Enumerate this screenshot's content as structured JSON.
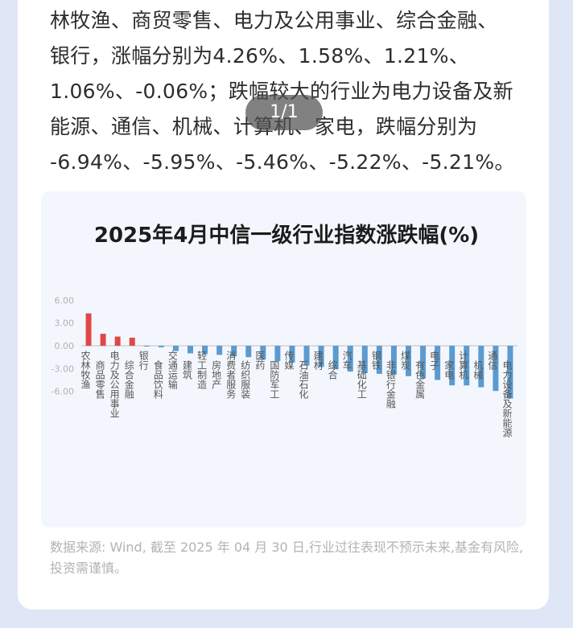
{
  "article": {
    "lines": [
      "林牧渔、商贸零售、电力及公用事业、综合金融、",
      "银行，涨幅分别为4.26%、1.58%、1.21%、",
      "1.06%、-0.06%；跌幅较大的行业为电力设备及新",
      "能源、通信、机械、计算机、家电，跌幅分别为",
      "-6.94%、-5.95%、-5.46%、-5.22%、-5.21%。"
    ]
  },
  "pager": {
    "label": "1/1"
  },
  "colors": {
    "positive": "#e04848",
    "negative": "#5b9bd0",
    "axis": "#999999"
  },
  "chart_data": {
    "type": "bar",
    "title": "2025年4月中信一级行业指数涨跌幅(%)",
    "ylim": [
      -7.5,
      6.5
    ],
    "yticks": [
      "6.00",
      "3.00",
      "0.00",
      "-3.00",
      "-6.00"
    ],
    "ytick_values": [
      6,
      3,
      0,
      -3,
      -6
    ],
    "categories": [
      "农林牧渔",
      "商品零售",
      "电力及公用事业",
      "综合金融",
      "银行",
      "食品饮料",
      "交通运输",
      "建筑",
      "轻工制造",
      "房地产",
      "消费者服务",
      "纺织服装",
      "医药",
      "国防军工",
      "传媒",
      "石油石化",
      "建材",
      "综合",
      "汽车",
      "基础化工",
      "钢铁",
      "非银行金融",
      "煤炭",
      "有色金属",
      "电子",
      "家电",
      "计算机",
      "机械",
      "通信",
      "电力设备及新能源"
    ],
    "values": [
      4.26,
      1.58,
      1.21,
      1.06,
      -0.06,
      -0.2,
      -0.7,
      -1.0,
      -1.1,
      -1.2,
      -1.4,
      -1.5,
      -1.8,
      -2.0,
      -2.2,
      -2.6,
      -2.8,
      -3.1,
      -3.4,
      -3.6,
      -3.7,
      -3.8,
      -4.0,
      -4.3,
      -4.5,
      -5.21,
      -5.22,
      -5.46,
      -5.95,
      -6.94
    ]
  },
  "source": {
    "text": "数据来源: Wind, 截至 2025 年 04 月 30 日,行业过往表现不预示未来,基金有风险,投资需谨慎。"
  }
}
